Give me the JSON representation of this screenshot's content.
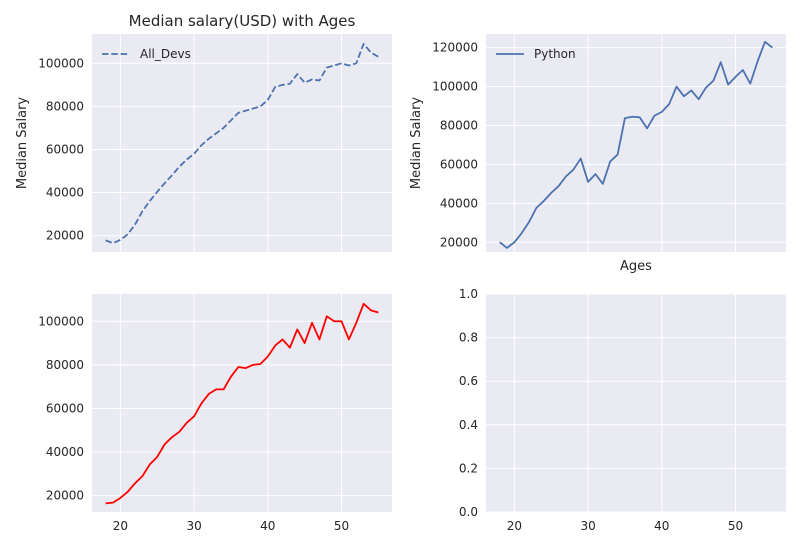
{
  "chart_data": [
    {
      "type": "line",
      "title": "Median salary(USD) with Ages",
      "xlabel": "",
      "ylabel": "Median Salary",
      "xlim": [
        16.15,
        56.85
      ],
      "ylim": [
        12400,
        113600
      ],
      "xticks": [
        20,
        30,
        40,
        50
      ],
      "yticks": [
        20000,
        40000,
        60000,
        80000,
        100000
      ],
      "show_xtick_labels": false,
      "legend": "top-left",
      "series": [
        {
          "name": "All_Devs",
          "color": "#4c72b0",
          "style": "dashed",
          "x": [
            18,
            19,
            20,
            21,
            22,
            23,
            24,
            25,
            26,
            27,
            28,
            29,
            30,
            31,
            32,
            33,
            34,
            35,
            36,
            37,
            38,
            39,
            40,
            41,
            42,
            43,
            44,
            45,
            46,
            47,
            48,
            49,
            50,
            51,
            52,
            53,
            54,
            55
          ],
          "y": [
            17784,
            16500,
            18012,
            20628,
            25206,
            31392,
            36142,
            40363,
            44322,
            48000,
            52000,
            55300,
            58000,
            62000,
            65000,
            67500,
            70000,
            73500,
            77000,
            78000,
            79000,
            80000,
            83000,
            89000,
            90000,
            90500,
            95000,
            91000,
            92500,
            92000,
            98000,
            99000,
            100000,
            99000,
            100000,
            109000,
            105000,
            103000
          ]
        }
      ]
    },
    {
      "type": "line",
      "title": "",
      "xlabel": "Ages",
      "ylabel": "Median Salary",
      "xlim": [
        16.15,
        56.85
      ],
      "ylim": [
        15000,
        127000
      ],
      "xticks": [
        20,
        30,
        40,
        50
      ],
      "yticks": [
        20000,
        40000,
        60000,
        80000,
        100000,
        120000
      ],
      "show_xtick_labels": false,
      "legend": "top-left",
      "series": [
        {
          "name": "Python",
          "color": "#4c72b0",
          "style": "solid",
          "x": [
            18,
            19,
            20,
            21,
            22,
            23,
            24,
            25,
            26,
            27,
            28,
            29,
            30,
            31,
            32,
            33,
            34,
            35,
            36,
            37,
            38,
            39,
            40,
            41,
            42,
            43,
            44,
            45,
            46,
            47,
            48,
            49,
            50,
            51,
            52,
            53,
            54,
            55
          ],
          "y": [
            20046,
            17100,
            20000,
            24744,
            30500,
            37732,
            41247,
            45372,
            48876,
            53850,
            57287,
            63016,
            51000,
            55000,
            50000,
            61500,
            65000,
            83800,
            84500,
            84200,
            78500,
            85000,
            87000,
            91000,
            100000,
            95000,
            98000,
            93500,
            99500,
            103000,
            112500,
            101000,
            105000,
            108500,
            101500,
            113000,
            123000,
            120000
          ]
        }
      ]
    },
    {
      "type": "line",
      "title": "",
      "xlabel": "",
      "ylabel": "",
      "xlim": [
        16.15,
        56.85
      ],
      "ylim": [
        12500,
        112500
      ],
      "xticks": [
        20,
        30,
        40,
        50
      ],
      "yticks": [
        20000,
        40000,
        60000,
        80000,
        100000
      ],
      "show_xtick_labels": true,
      "legend": "none",
      "series": [
        {
          "color": "#ff0000",
          "style": "solid",
          "x": [
            18,
            19,
            20,
            21,
            22,
            23,
            24,
            25,
            26,
            27,
            28,
            29,
            30,
            31,
            32,
            33,
            34,
            35,
            36,
            37,
            38,
            39,
            40,
            41,
            42,
            43,
            44,
            45,
            46,
            47,
            48,
            49,
            50,
            51,
            52,
            53,
            54,
            55
          ],
          "y": [
            16446,
            16791,
            18942,
            21780,
            25704,
            29000,
            34372,
            37810,
            43515,
            46823,
            49293,
            53437,
            56373,
            62375,
            66674,
            68745,
            68746,
            74583,
            79000,
            78508,
            79996,
            80403,
            83820,
            88833,
            91660,
            87892,
            96243,
            90000,
            99313,
            91660,
            102264,
            100000,
            100000,
            91660,
            99240,
            108000,
            105000,
            104000
          ]
        }
      ]
    },
    {
      "type": "line",
      "title": "",
      "xlabel": "",
      "ylabel": "",
      "xlim": [
        16.15,
        56.85
      ],
      "ylim": [
        0,
        1
      ],
      "xticks": [
        20,
        30,
        40,
        50
      ],
      "yticks": [
        0.0,
        0.2,
        0.4,
        0.6,
        0.8,
        1.0
      ],
      "ytick_labels": [
        "0.0",
        "0.2",
        "0.4",
        "0.6",
        "0.8",
        "1.0"
      ],
      "show_xtick_labels": true,
      "legend": "none",
      "series": []
    }
  ]
}
